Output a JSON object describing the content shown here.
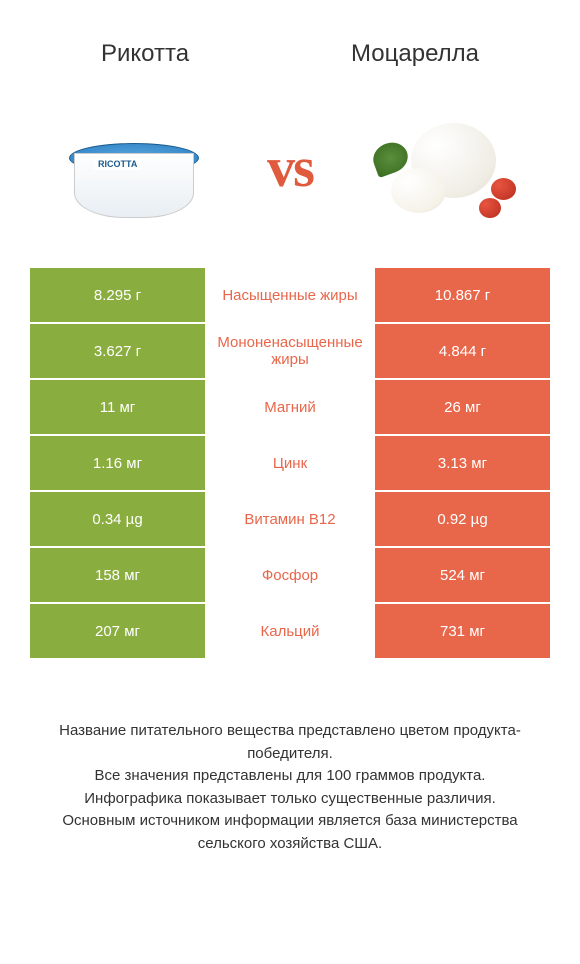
{
  "header": {
    "left_title": "Рикотта",
    "right_title": "Моцарелла"
  },
  "vs_text": "vs",
  "colors": {
    "left_bar": "#8aad3f",
    "right_bar": "#e8674b",
    "left_text": "#8aad3f",
    "right_text": "#e8674b"
  },
  "nutrients": [
    {
      "left": "8.295 г",
      "label": "Насыщенные жиры",
      "right": "10.867 г",
      "winner": "right"
    },
    {
      "left": "3.627 г",
      "label": "Мононенасыщенные жиры",
      "right": "4.844 г",
      "winner": "right"
    },
    {
      "left": "11 мг",
      "label": "Магний",
      "right": "26 мг",
      "winner": "right"
    },
    {
      "left": "1.16 мг",
      "label": "Цинк",
      "right": "3.13 мг",
      "winner": "right"
    },
    {
      "left": "0.34 µg",
      "label": "Витамин B12",
      "right": "0.92 µg",
      "winner": "right"
    },
    {
      "left": "158 мг",
      "label": "Фосфор",
      "right": "524 мг",
      "winner": "right"
    },
    {
      "left": "207 мг",
      "label": "Кальций",
      "right": "731 мг",
      "winner": "right"
    }
  ],
  "footer": {
    "line1": "Название питательного вещества представлено цветом продукта-победителя.",
    "line2": "Все значения представлены для 100 граммов продукта.",
    "line3": "Инфографика показывает только существенные различия.",
    "line4": "Основным источником информации является база министерства сельского хозяйства США."
  }
}
